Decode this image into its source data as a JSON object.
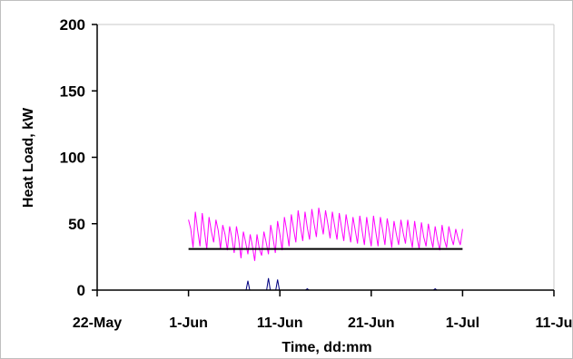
{
  "chart_data": {
    "type": "line",
    "title": "",
    "xlabel": "Time, dd:mm",
    "ylabel": "Heat Load, kW",
    "x_ticks": [
      "22-May",
      "1-Jun",
      "11-Jun",
      "21-Jun",
      "1-Jul",
      "11-Ju"
    ],
    "x_tick_dates": [
      "2000-05-22",
      "2000-06-01",
      "2000-06-11",
      "2000-06-21",
      "2000-07-01",
      "2000-07-11"
    ],
    "xlim": [
      "2000-05-22",
      "2000-07-11"
    ],
    "ylim": [
      0,
      200
    ],
    "y_ticks": [
      0,
      50,
      100,
      150,
      200
    ],
    "grid": false,
    "legend": "none",
    "series": [
      {
        "color": "#ff00ff",
        "style": "line",
        "x": [
          "2000-06-01",
          "2000-06-01T06:00",
          "2000-06-01T12:00",
          "2000-06-01T18:00",
          "2000-06-02",
          "2000-06-02T06:00",
          "2000-06-02T12:00",
          "2000-06-02T18:00",
          "2000-06-03",
          "2000-06-03T06:00",
          "2000-06-03T12:00",
          "2000-06-03T18:00",
          "2000-06-04",
          "2000-06-04T06:00",
          "2000-06-04T12:00",
          "2000-06-04T18:00",
          "2000-06-05",
          "2000-06-05T06:00",
          "2000-06-05T12:00",
          "2000-06-05T18:00",
          "2000-06-06",
          "2000-06-06T06:00",
          "2000-06-06T12:00",
          "2000-06-06T18:00",
          "2000-06-07",
          "2000-06-07T06:00",
          "2000-06-07T12:00",
          "2000-06-07T18:00",
          "2000-06-08",
          "2000-06-08T06:00",
          "2000-06-08T12:00",
          "2000-06-08T18:00",
          "2000-06-09",
          "2000-06-09T06:00",
          "2000-06-09T12:00",
          "2000-06-09T18:00",
          "2000-06-10",
          "2000-06-10T06:00",
          "2000-06-10T12:00",
          "2000-06-10T18:00",
          "2000-06-11",
          "2000-06-11T06:00",
          "2000-06-11T12:00",
          "2000-06-11T18:00",
          "2000-06-12",
          "2000-06-12T06:00",
          "2000-06-12T12:00",
          "2000-06-12T18:00",
          "2000-06-13",
          "2000-06-13T06:00",
          "2000-06-13T12:00",
          "2000-06-13T18:00",
          "2000-06-14",
          "2000-06-14T06:00",
          "2000-06-14T12:00",
          "2000-06-14T18:00",
          "2000-06-15",
          "2000-06-15T06:00",
          "2000-06-15T12:00",
          "2000-06-15T18:00",
          "2000-06-16",
          "2000-06-16T06:00",
          "2000-06-16T12:00",
          "2000-06-16T18:00",
          "2000-06-17",
          "2000-06-17T06:00",
          "2000-06-17T12:00",
          "2000-06-17T18:00",
          "2000-06-18",
          "2000-06-18T06:00",
          "2000-06-18T12:00",
          "2000-06-18T18:00",
          "2000-06-19",
          "2000-06-19T06:00",
          "2000-06-19T12:00",
          "2000-06-19T18:00",
          "2000-06-20",
          "2000-06-20T06:00",
          "2000-06-20T12:00",
          "2000-06-20T18:00",
          "2000-06-21",
          "2000-06-21T06:00",
          "2000-06-21T12:00",
          "2000-06-21T18:00",
          "2000-06-22",
          "2000-06-22T06:00",
          "2000-06-22T12:00",
          "2000-06-22T18:00",
          "2000-06-23",
          "2000-06-23T06:00",
          "2000-06-23T12:00",
          "2000-06-23T18:00",
          "2000-06-24",
          "2000-06-24T06:00",
          "2000-06-24T12:00",
          "2000-06-24T18:00",
          "2000-06-25",
          "2000-06-25T06:00",
          "2000-06-25T12:00",
          "2000-06-25T18:00",
          "2000-06-26",
          "2000-06-26T06:00",
          "2000-06-26T12:00",
          "2000-06-26T18:00",
          "2000-06-27",
          "2000-06-27T06:00",
          "2000-06-27T12:00",
          "2000-06-27T18:00",
          "2000-06-28",
          "2000-06-28T06:00",
          "2000-06-28T12:00",
          "2000-06-28T18:00",
          "2000-06-29",
          "2000-06-29T06:00",
          "2000-06-29T12:00",
          "2000-06-29T18:00",
          "2000-06-30",
          "2000-06-30T06:00",
          "2000-06-30T12:00",
          "2000-06-30T18:00",
          "2000-07-01"
        ],
        "y": [
          53,
          46,
          32,
          59,
          45,
          33,
          58,
          44,
          31,
          55,
          44,
          36,
          53,
          45,
          31,
          49,
          42,
          30,
          48,
          39,
          28,
          48,
          38,
          24,
          44,
          36,
          27,
          42,
          33,
          22,
          42,
          31,
          26,
          44,
          36,
          27,
          49,
          39,
          28,
          52,
          42,
          30,
          55,
          45,
          33,
          57,
          46,
          36,
          60,
          48,
          37,
          59,
          47,
          38,
          61,
          50,
          40,
          62,
          52,
          42,
          60,
          50,
          39,
          59,
          48,
          38,
          58,
          47,
          37,
          57,
          46,
          36,
          55,
          45,
          35,
          56,
          45,
          34,
          55,
          43,
          33,
          56,
          44,
          33,
          55,
          45,
          34,
          54,
          44,
          32,
          52,
          42,
          34,
          53,
          43,
          35,
          53,
          41,
          32,
          52,
          40,
          31,
          51,
          40,
          33,
          50,
          40,
          32,
          48,
          38,
          30,
          49,
          38,
          32,
          48,
          40,
          34,
          46,
          39,
          34,
          46
        ]
      },
      {
        "color": "#000000",
        "style": "line",
        "x": [
          "2000-06-01",
          "2000-07-01"
        ],
        "y": [
          31,
          31
        ]
      },
      {
        "color": "#000080",
        "style": "spikes",
        "x": [
          "2000-06-07T12:00",
          "2000-06-09T18:00",
          "2000-06-10T18:00",
          "2000-06-14",
          "2000-06-28"
        ],
        "y": [
          7,
          9,
          8,
          1,
          1
        ]
      }
    ]
  }
}
